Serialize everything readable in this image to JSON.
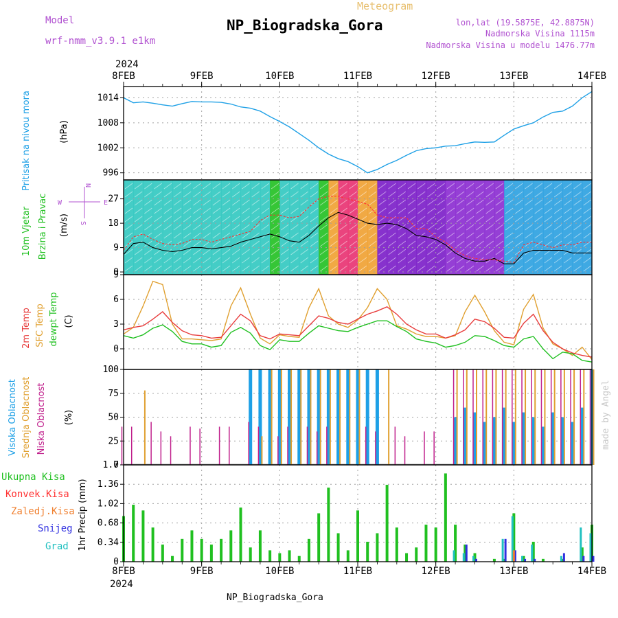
{
  "header": {
    "model_label": "Model",
    "model_name": "wrf-nmm_v3.9.1  e1km",
    "product": "Meteogram",
    "station": "NP_Biogradska_Gora",
    "lonlat": "lon,lat (19.5875E, 42.8875N)",
    "elevation": "Nadmorska Visina 1115m",
    "model_elevation": "Nadmorska Visina u modelu 1476.77m",
    "year": "2024",
    "footer_station": "NP_Biogradska_Gora",
    "credit": "made by Angel"
  },
  "colors": {
    "pressure": "#1ea0e6",
    "wind_speed": "#000000",
    "wind_gust": "#ff3030",
    "t2m": "#e83c3c",
    "tsfc": "#e0a030",
    "dewpoint": "#20c020",
    "high_cloud": "#1ea0e6",
    "mid_cloud": "#e0a030",
    "low_cloud": "#c0208c",
    "total_precip": "#20c020",
    "conv_precip": "#ff3030",
    "freezing": "#f08030",
    "snow": "#3030e0",
    "graupel": "#20c0c0",
    "grid": "#a0a0a0"
  },
  "chart_data": [
    {
      "type": "line",
      "panel": "pressure",
      "ylabel_lines": [
        "Pritisak na nivou mora"
      ],
      "unit": "(hPa)",
      "x_ticks": [
        "8FEB",
        "9FEB",
        "10FEB",
        "11FEB",
        "12FEB",
        "13FEB",
        "14FEB"
      ],
      "x": [
        0,
        3,
        6,
        9,
        12,
        15,
        18,
        21,
        24,
        27,
        30,
        33,
        36,
        39,
        42,
        45,
        48,
        51,
        54,
        57,
        60,
        63,
        66,
        69,
        72,
        75,
        78,
        81,
        84,
        87,
        90,
        93,
        96,
        99,
        102,
        105,
        108,
        111,
        114,
        117,
        120,
        123,
        126,
        129,
        132,
        135,
        138,
        141,
        144
      ],
      "x_unit": "hours after 8FEB 00",
      "y_ticks": [
        996,
        1002,
        1008,
        1014
      ],
      "ylim": [
        994.3,
        1016.7
      ],
      "series": [
        {
          "values": [
            1014.0,
            1012.8,
            1013.0,
            1012.7,
            1012.3,
            1012.0,
            1012.6,
            1013.1,
            1013.0,
            1013.0,
            1012.9,
            1012.5,
            1011.8,
            1011.5,
            1010.8,
            1009.5,
            1008.3,
            1007.0,
            1005.4,
            1003.8,
            1002.0,
            1000.5,
            999.4,
            998.7,
            997.5,
            996.0,
            996.8,
            998.0,
            999.0,
            1000.2,
            1001.3,
            1001.8,
            1002.0,
            1002.4,
            1002.5,
            1003.0,
            1003.4,
            1003.3,
            1003.4,
            1005.0,
            1006.5,
            1007.3,
            1008.0,
            1009.4,
            1010.5,
            1010.8,
            1012.0,
            1014.0,
            1015.5
          ]
        }
      ]
    },
    {
      "type": "line",
      "panel": "wind",
      "ylabel_lines": [
        "10m Vjetar",
        "Brzina i Pravac"
      ],
      "unit": "(m/s)",
      "compass": [
        "N",
        "W",
        "E",
        "S"
      ],
      "y_ticks": [
        0,
        9,
        18,
        27
      ],
      "ylim": [
        -1.0,
        34.0
      ],
      "x": [
        0,
        3,
        6,
        9,
        12,
        15,
        18,
        21,
        24,
        27,
        30,
        33,
        36,
        39,
        42,
        45,
        48,
        51,
        54,
        57,
        60,
        63,
        66,
        69,
        72,
        75,
        78,
        81,
        84,
        87,
        90,
        93,
        96,
        99,
        102,
        105,
        108,
        111,
        114,
        117,
        120,
        123,
        126,
        129,
        132,
        135,
        138,
        141,
        144
      ],
      "series": [
        {
          "values": [
            6.5,
            10.5,
            11.0,
            9.0,
            8.0,
            7.5,
            8.0,
            9.0,
            9.0,
            8.5,
            9.0,
            9.5,
            11.0,
            12.0,
            13.0,
            14.0,
            13.0,
            11.5,
            11.0,
            13.5,
            17.0,
            20.0,
            22.0,
            21.0,
            19.5,
            18.0,
            17.5,
            18.0,
            17.5,
            16.0,
            13.5,
            13.0,
            12.0,
            10.0,
            7.0,
            5.0,
            4.0,
            4.0,
            5.0,
            3.0,
            3.0,
            7.0,
            8.0,
            8.0,
            8.0,
            8.0,
            7.0,
            7.0,
            7.0
          ]
        },
        {
          "values": [
            8.0,
            13.0,
            14.0,
            12.0,
            10.5,
            10.0,
            10.5,
            12.0,
            12.0,
            11.0,
            12.0,
            13.0,
            14.0,
            15.0,
            19.0,
            21.0,
            21.0,
            20.0,
            20.5,
            24.0,
            27.0,
            28.0,
            28.0,
            27.0,
            26.0,
            25.0,
            21.0,
            20.0,
            20.0,
            20.0,
            16.0,
            16.0,
            13.0,
            11.0,
            8.0,
            6.0,
            5.0,
            4.5,
            4.5,
            4.0,
            3.5,
            10.0,
            11.0,
            10.0,
            9.0,
            10.0,
            10.0,
            11.0,
            11.0
          ]
        }
      ]
    },
    {
      "type": "line",
      "panel": "temperature",
      "labels": [
        "2m Temp",
        "SFC Temp",
        "dewpt Temp"
      ],
      "unit": "(C)",
      "y_ticks": [
        0,
        3,
        6,
        9
      ],
      "ylim": [
        -2.5,
        9.0
      ],
      "x": [
        0,
        3,
        6,
        9,
        12,
        15,
        18,
        21,
        24,
        27,
        30,
        33,
        36,
        39,
        42,
        45,
        48,
        51,
        54,
        57,
        60,
        63,
        66,
        69,
        72,
        75,
        78,
        81,
        84,
        87,
        90,
        93,
        96,
        99,
        102,
        105,
        108,
        111,
        114,
        117,
        120,
        123,
        126,
        129,
        132,
        135,
        138,
        141,
        144
      ],
      "series": [
        {
          "values": [
            2.3,
            2.6,
            2.8,
            3.6,
            4.5,
            3.2,
            2.2,
            1.7,
            1.6,
            1.3,
            1.4,
            2.8,
            4.2,
            3.4,
            1.6,
            1.2,
            1.8,
            1.7,
            1.6,
            2.8,
            4.0,
            3.7,
            3.2,
            3.0,
            3.6,
            4.2,
            4.6,
            5.1,
            4.2,
            3.0,
            2.3,
            1.8,
            1.8,
            1.3,
            1.7,
            2.3,
            3.6,
            3.3,
            2.5,
            1.4,
            1.3,
            3.1,
            4.2,
            2.2,
            0.8,
            0.0,
            -0.5,
            -0.8,
            -1.0
          ]
        },
        {
          "values": [
            1.8,
            2.6,
            5.2,
            8.2,
            7.8,
            3.0,
            1.2,
            1.2,
            1.1,
            1.0,
            1.2,
            5.2,
            7.4,
            4.2,
            1.3,
            0.6,
            1.7,
            1.5,
            1.4,
            5.0,
            7.3,
            4.0,
            3.0,
            2.6,
            3.5,
            5.0,
            7.3,
            6.0,
            2.8,
            2.4,
            1.8,
            1.5,
            1.5,
            1.3,
            1.6,
            4.5,
            6.5,
            4.5,
            2.2,
            0.8,
            0.5,
            4.8,
            6.6,
            2.5,
            0.6,
            0.0,
            -0.8,
            0.2,
            -1.3
          ]
        },
        {
          "values": [
            1.6,
            1.3,
            1.7,
            2.5,
            2.9,
            2.1,
            0.9,
            0.6,
            0.6,
            0.2,
            0.4,
            2.0,
            2.6,
            1.9,
            0.4,
            -0.1,
            1.1,
            0.9,
            0.9,
            1.9,
            2.8,
            2.5,
            2.2,
            2.1,
            2.6,
            3.0,
            3.4,
            3.4,
            2.7,
            2.1,
            1.2,
            0.9,
            0.7,
            0.2,
            0.4,
            0.8,
            1.6,
            1.5,
            1.0,
            0.4,
            0.2,
            1.2,
            1.5,
            0.0,
            -1.2,
            -0.4,
            -0.6,
            -1.4,
            -1.6
          ]
        }
      ]
    },
    {
      "type": "bar",
      "panel": "clouds",
      "labels": [
        "Visoka Oblacnost",
        "Srednja Oblacnost",
        "Niska Oblacnost"
      ],
      "unit": "(%)",
      "y_ticks": [
        0,
        25,
        50,
        75,
        100
      ],
      "ylim": [
        0,
        100
      ],
      "x": [
        0,
        3,
        6,
        9,
        12,
        15,
        18,
        21,
        24,
        27,
        30,
        33,
        36,
        39,
        42,
        45,
        48,
        51,
        54,
        57,
        60,
        63,
        66,
        69,
        72,
        75,
        78,
        81,
        84,
        87,
        90,
        93,
        96,
        99,
        102,
        105,
        108,
        111,
        114,
        117,
        120,
        123,
        126,
        129,
        132,
        135,
        138,
        141,
        144
      ],
      "series": [
        {
          "values": [
            0,
            0,
            0,
            0,
            0,
            0,
            0,
            0,
            0,
            0,
            0,
            0,
            0,
            100,
            100,
            100,
            100,
            100,
            100,
            100,
            100,
            100,
            100,
            100,
            100,
            100,
            100,
            0,
            0,
            0,
            0,
            0,
            0,
            0,
            50,
            60,
            55,
            45,
            50,
            60,
            45,
            55,
            50,
            40,
            55,
            50,
            45,
            60,
            100
          ]
        },
        {
          "values": [
            0,
            0,
            78,
            0,
            0,
            0,
            0,
            0,
            0,
            0,
            0,
            0,
            0,
            0,
            30,
            100,
            100,
            100,
            100,
            100,
            100,
            100,
            100,
            100,
            100,
            0,
            0,
            100,
            0,
            0,
            0,
            0,
            0,
            0,
            100,
            100,
            100,
            100,
            100,
            100,
            100,
            100,
            100,
            100,
            100,
            100,
            100,
            100,
            100
          ]
        },
        {
          "values": [
            40,
            40,
            0,
            45,
            35,
            30,
            0,
            40,
            38,
            0,
            40,
            40,
            0,
            45,
            40,
            0,
            30,
            40,
            0,
            40,
            35,
            40,
            0,
            0,
            0,
            40,
            35,
            0,
            40,
            30,
            0,
            35,
            35,
            0,
            100,
            100,
            100,
            100,
            100,
            100,
            100,
            100,
            100,
            100,
            100,
            100,
            100,
            100,
            100
          ]
        }
      ]
    },
    {
      "type": "bar",
      "panel": "precipitation",
      "labels": [
        "Ukupna Kisa",
        "Konvek.Kisa",
        "Zaledj.Kisa",
        "Snijeg",
        "Grad"
      ],
      "unit": "1hr Precip (mm)",
      "y_ticks": [
        0,
        0.34,
        0.68,
        1.02,
        1.36,
        1.7
      ],
      "ylim": [
        0,
        1.7
      ],
      "x": [
        0,
        3,
        6,
        9,
        12,
        15,
        18,
        21,
        24,
        27,
        30,
        33,
        36,
        39,
        42,
        45,
        48,
        51,
        54,
        57,
        60,
        63,
        66,
        69,
        72,
        75,
        78,
        81,
        84,
        87,
        90,
        93,
        96,
        99,
        102,
        105,
        108,
        111,
        114,
        117,
        120,
        123,
        126,
        129,
        132,
        135,
        138,
        141,
        144
      ],
      "series": [
        {
          "values": [
            0.8,
            1.0,
            0.9,
            0.6,
            0.3,
            0.1,
            0.4,
            0.55,
            0.4,
            0.3,
            0.4,
            0.55,
            0.95,
            0.25,
            0.55,
            0.2,
            0.15,
            0.2,
            0.1,
            0.4,
            0.85,
            1.3,
            0.5,
            0.2,
            0.9,
            0.35,
            0.5,
            1.35,
            0.6,
            0.15,
            0.25,
            0.65,
            0.6,
            1.55,
            0.65,
            0.3,
            0.15,
            0.0,
            0.05,
            0.05,
            0.85,
            0.1,
            0.35,
            0.05,
            0.0,
            0.05,
            0.0,
            0.25,
            0.65
          ]
        },
        {
          "values": [
            0,
            0,
            0,
            0,
            0,
            0,
            0,
            0,
            0,
            0,
            0,
            0,
            0,
            0,
            0,
            0,
            0,
            0,
            0,
            0,
            0,
            0,
            0,
            0,
            0,
            0,
            0,
            0,
            0,
            0,
            0,
            0,
            0,
            0,
            0,
            0,
            0,
            0,
            0,
            0,
            0,
            0,
            0,
            0,
            0,
            0,
            0,
            0,
            0
          ]
        },
        {
          "values": [
            0,
            0,
            0,
            0,
            0,
            0,
            0,
            0,
            0,
            0,
            0,
            0,
            0,
            0,
            0,
            0,
            0,
            0,
            0,
            0,
            0,
            0,
            0,
            0,
            0,
            0,
            0,
            0,
            0,
            0,
            0,
            0,
            0,
            0,
            0,
            0,
            0,
            0,
            0,
            0,
            0.2,
            0,
            0,
            0,
            0,
            0,
            0,
            0,
            0
          ]
        },
        {
          "values": [
            0,
            0,
            0,
            0,
            0,
            0,
            0,
            0,
            0,
            0,
            0,
            0,
            0,
            0,
            0,
            0,
            0,
            0,
            0,
            0,
            0,
            0,
            0,
            0,
            0,
            0,
            0,
            0,
            0,
            0,
            0,
            0,
            0,
            0,
            0,
            0.3,
            0.05,
            0,
            0,
            0.4,
            0.2,
            0.05,
            0.05,
            0,
            0,
            0.15,
            0,
            0.1,
            0.1
          ]
        },
        {
          "values": [
            0,
            0,
            0,
            0,
            0,
            0,
            0,
            0,
            0,
            0,
            0,
            0,
            0,
            0,
            0,
            0,
            0,
            0,
            0,
            0,
            0,
            0,
            0,
            0,
            0,
            0,
            0,
            0,
            0,
            0,
            0,
            0,
            0,
            0,
            0.2,
            0.15,
            0.1,
            0,
            0,
            0.4,
            0.8,
            0.1,
            0.3,
            0,
            0,
            0.1,
            0,
            0.6,
            0.5
          ]
        }
      ]
    }
  ]
}
